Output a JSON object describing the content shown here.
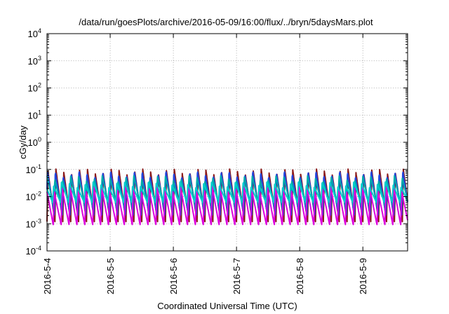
{
  "chart_data": {
    "type": "line",
    "title": "/data/run/goesPlots/archive/2016-05-09/16:00/flux/../bryn/5daysMars.plot",
    "xlabel": "Coordinated Universal Time (UTC)",
    "ylabel": "cGy/day",
    "xlim": [
      "2016-05-04T00:00",
      "2016-05-09T17:00"
    ],
    "x_ticks": [
      "2016-5-4",
      "2016-5-5",
      "2016-5-6",
      "2016-5-7",
      "2016-5-8",
      "2016-5-9"
    ],
    "y_scale": "log",
    "ylim": [
      0.0001,
      10000
    ],
    "y_ticks": [
      {
        "base": "10",
        "exp": "-4"
      },
      {
        "base": "10",
        "exp": "-3"
      },
      {
        "base": "10",
        "exp": "-2"
      },
      {
        "base": "10",
        "exp": "-1"
      },
      {
        "base": "10",
        "exp": "0"
      },
      {
        "base": "10",
        "exp": "1"
      },
      {
        "base": "10",
        "exp": "2"
      },
      {
        "base": "10",
        "exp": "3"
      },
      {
        "base": "10",
        "exp": "4"
      }
    ],
    "grid": true,
    "legend": "none",
    "sawtooth_period_hours": 3,
    "series": [
      {
        "color": "#8b1a1a",
        "peak": 0.085,
        "trough": 0.0012
      },
      {
        "color": "#2244dd",
        "peak": 0.075,
        "trough": 0.002
      },
      {
        "color": "#00aaaa",
        "peak": 0.05,
        "trough": 0.004
      },
      {
        "color": "#dd00dd",
        "peak": 0.02,
        "trough": 0.0009
      },
      {
        "color": "#00cccc",
        "peak": 0.03,
        "trough": 0.006
      }
    ]
  }
}
